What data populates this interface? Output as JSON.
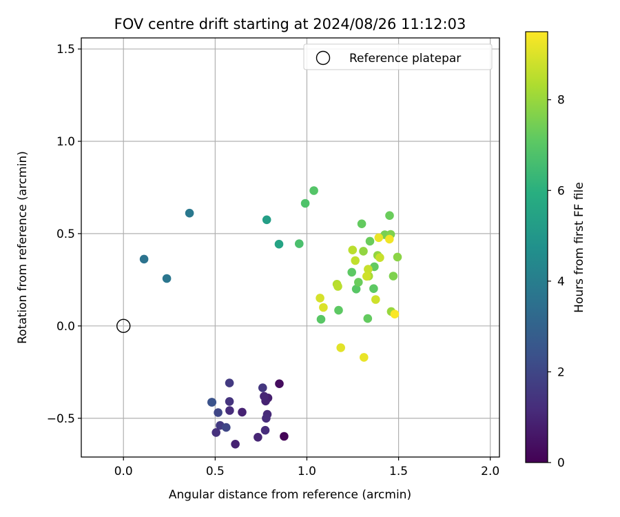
{
  "chart_data": {
    "type": "scatter",
    "title": "FOV centre drift starting at 2024/08/26 11:12:03",
    "xlabel": "Angular distance from reference (arcmin)",
    "ylabel": "Rotation from reference (arcmin)",
    "xlim": [
      -0.23,
      2.05
    ],
    "ylim": [
      -0.71,
      1.56
    ],
    "xticks": [
      0.0,
      0.5,
      1.0,
      1.5,
      2.0
    ],
    "xtick_labels": [
      "0.0",
      "0.5",
      "1.0",
      "1.5",
      "2.0"
    ],
    "yticks": [
      -0.5,
      0.0,
      0.5,
      1.0,
      1.5
    ],
    "ytick_labels": [
      "−0.5",
      "0.0",
      "0.5",
      "1.0",
      "1.5"
    ],
    "grid": true,
    "legend": {
      "position": "top-right",
      "entries": [
        {
          "label": "Reference platepar",
          "marker": "open-circle"
        }
      ]
    },
    "reference_point": {
      "x": 0.0,
      "y": 0.0
    },
    "colorbar": {
      "label": "Hours from first FF file",
      "colormap": "viridis",
      "range": [
        0,
        9.5
      ],
      "ticks": [
        0,
        2,
        4,
        6,
        8
      ],
      "tick_labels": [
        "0",
        "2",
        "4",
        "6",
        "8"
      ]
    },
    "points": [
      {
        "x": 0.876,
        "y": -0.598,
        "c": 0.1
      },
      {
        "x": 0.85,
        "y": -0.313,
        "c": 0.3
      },
      {
        "x": 0.788,
        "y": -0.39,
        "c": 0.8
      },
      {
        "x": 0.775,
        "y": -0.407,
        "c": 0.9
      },
      {
        "x": 0.767,
        "y": -0.381,
        "c": 1.0
      },
      {
        "x": 0.784,
        "y": -0.479,
        "c": 1.1
      },
      {
        "x": 0.778,
        "y": -0.5,
        "c": 1.2
      },
      {
        "x": 0.773,
        "y": -0.565,
        "c": 1.2
      },
      {
        "x": 0.733,
        "y": -0.603,
        "c": 1.0
      },
      {
        "x": 0.759,
        "y": -0.335,
        "c": 1.5
      },
      {
        "x": 0.647,
        "y": -0.467,
        "c": 0.9
      },
      {
        "x": 0.61,
        "y": -0.64,
        "c": 0.9
      },
      {
        "x": 0.579,
        "y": -0.458,
        "c": 1.2
      },
      {
        "x": 0.578,
        "y": -0.409,
        "c": 1.4
      },
      {
        "x": 0.578,
        "y": -0.309,
        "c": 1.6
      },
      {
        "x": 0.527,
        "y": -0.539,
        "c": 1.6
      },
      {
        "x": 0.56,
        "y": -0.55,
        "c": 2.0
      },
      {
        "x": 0.516,
        "y": -0.469,
        "c": 2.0
      },
      {
        "x": 0.505,
        "y": -0.577,
        "c": 1.3
      },
      {
        "x": 0.481,
        "y": -0.413,
        "c": 2.2
      },
      {
        "x": 0.483,
        "y": -0.413,
        "c": 2.4
      },
      {
        "x": 0.112,
        "y": 0.362,
        "c": 3.6
      },
      {
        "x": 0.236,
        "y": 0.257,
        "c": 3.7
      },
      {
        "x": 0.36,
        "y": 0.611,
        "c": 3.8
      },
      {
        "x": 0.781,
        "y": 0.575,
        "c": 5.3
      },
      {
        "x": 0.848,
        "y": 0.443,
        "c": 5.5
      },
      {
        "x": 0.958,
        "y": 0.445,
        "c": 6.7
      },
      {
        "x": 0.991,
        "y": 0.664,
        "c": 6.8
      },
      {
        "x": 1.038,
        "y": 0.733,
        "c": 6.9
      },
      {
        "x": 1.077,
        "y": 0.036,
        "c": 7.0
      },
      {
        "x": 1.173,
        "y": 0.085,
        "c": 7.1
      },
      {
        "x": 1.269,
        "y": 0.2,
        "c": 7.0
      },
      {
        "x": 1.281,
        "y": 0.237,
        "c": 7.3
      },
      {
        "x": 1.245,
        "y": 0.291,
        "c": 7.1
      },
      {
        "x": 1.364,
        "y": 0.202,
        "c": 7.1
      },
      {
        "x": 1.332,
        "y": 0.04,
        "c": 7.2
      },
      {
        "x": 1.299,
        "y": 0.553,
        "c": 7.2
      },
      {
        "x": 1.344,
        "y": 0.459,
        "c": 7.3
      },
      {
        "x": 1.368,
        "y": 0.321,
        "c": 7.2
      },
      {
        "x": 1.425,
        "y": 0.494,
        "c": 7.5
      },
      {
        "x": 1.451,
        "y": 0.598,
        "c": 7.3
      },
      {
        "x": 1.457,
        "y": 0.496,
        "c": 7.6
      },
      {
        "x": 1.471,
        "y": 0.27,
        "c": 7.6
      },
      {
        "x": 1.494,
        "y": 0.373,
        "c": 7.8
      },
      {
        "x": 1.308,
        "y": 0.405,
        "c": 7.9
      },
      {
        "x": 1.386,
        "y": 0.382,
        "c": 7.9
      },
      {
        "x": 1.46,
        "y": 0.078,
        "c": 8.0
      },
      {
        "x": 1.337,
        "y": 0.27,
        "c": 8.2
      },
      {
        "x": 1.164,
        "y": 0.226,
        "c": 8.4
      },
      {
        "x": 1.169,
        "y": 0.214,
        "c": 8.5
      },
      {
        "x": 1.249,
        "y": 0.411,
        "c": 8.5
      },
      {
        "x": 1.264,
        "y": 0.354,
        "c": 8.6
      },
      {
        "x": 1.334,
        "y": 0.307,
        "c": 8.7
      },
      {
        "x": 1.326,
        "y": 0.269,
        "c": 8.8
      },
      {
        "x": 1.398,
        "y": 0.37,
        "c": 8.7
      },
      {
        "x": 1.375,
        "y": 0.143,
        "c": 8.8
      },
      {
        "x": 1.072,
        "y": 0.151,
        "c": 8.9
      },
      {
        "x": 1.09,
        "y": 0.1,
        "c": 9.0
      },
      {
        "x": 1.185,
        "y": -0.118,
        "c": 9.1
      },
      {
        "x": 1.311,
        "y": -0.17,
        "c": 9.2
      },
      {
        "x": 1.392,
        "y": 0.478,
        "c": 9.2
      },
      {
        "x": 1.45,
        "y": 0.47,
        "c": 9.3
      },
      {
        "x": 1.479,
        "y": 0.064,
        "c": 9.45
      }
    ]
  }
}
